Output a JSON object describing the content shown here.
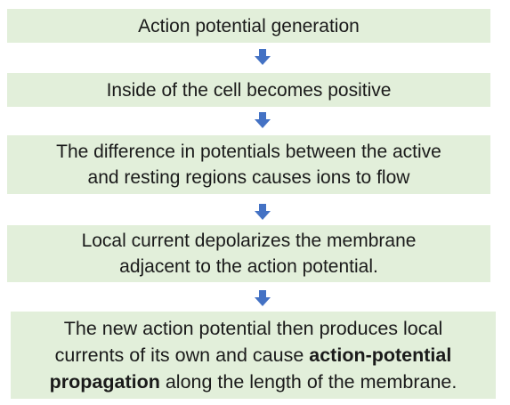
{
  "steps": [
    {
      "text": "Action potential generation"
    },
    {
      "text": "Inside of the cell becomes positive"
    },
    {
      "line1": "The difference in potentials between the active",
      "line2": "and resting regions causes ions to flow"
    },
    {
      "line1": "Local current depolarizes the membrane",
      "line2": "adjacent to the action potential."
    },
    {
      "line1": "The new action potential then produces local",
      "line2_pre": "currents of its own and cause ",
      "line2_bold": "action-potential",
      "line3_bold": "propagation",
      "line3_post": " along the length of the membrane."
    }
  ],
  "colors": {
    "box_fill": "#e2efda",
    "arrow_fill": "#4472c4",
    "text": "#1a1a1a"
  },
  "icons": {
    "arrow": "arrow-down-icon"
  }
}
